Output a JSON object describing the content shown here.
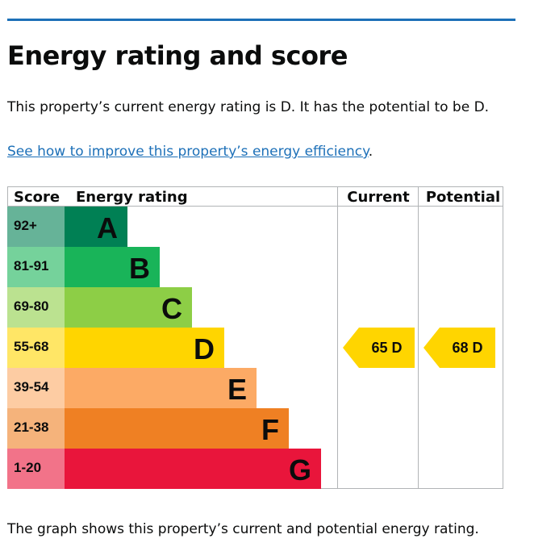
{
  "page": {
    "title": "Energy rating and score",
    "summary": "This property’s current energy rating is D. It has the potential to be D.",
    "improve_link": "See how to improve this property’s energy efficiency",
    "improve_trailing": ".",
    "caption": "The graph shows this property’s current and potential energy rating."
  },
  "chart_data": {
    "type": "bar",
    "headers": {
      "score": "Score",
      "rating": "Energy rating",
      "current": "Current",
      "potential": "Potential"
    },
    "bands": [
      {
        "range": "92+",
        "letter": "A",
        "color": "#008054",
        "score_bg": "#66b398"
      },
      {
        "range": "81-91",
        "letter": "B",
        "color": "#19b459",
        "score_bg": "#75d29b"
      },
      {
        "range": "69-80",
        "letter": "C",
        "color": "#8dce46",
        "score_bg": "#bbe290"
      },
      {
        "range": "55-68",
        "letter": "D",
        "color": "#ffd500",
        "score_bg": "#ffe666"
      },
      {
        "range": "39-54",
        "letter": "E",
        "color": "#fcaa65",
        "score_bg": "#fdcca3"
      },
      {
        "range": "21-38",
        "letter": "F",
        "color": "#ef8023",
        "score_bg": "#f5b37b"
      },
      {
        "range": "1-20",
        "letter": "G",
        "color": "#e9153b",
        "score_bg": "#f27389"
      }
    ],
    "current": {
      "score": 65,
      "letter": "D",
      "label": "65 D"
    },
    "potential": {
      "score": 68,
      "letter": "D",
      "label": "68 D"
    },
    "pointer_color": "#ffd500"
  }
}
